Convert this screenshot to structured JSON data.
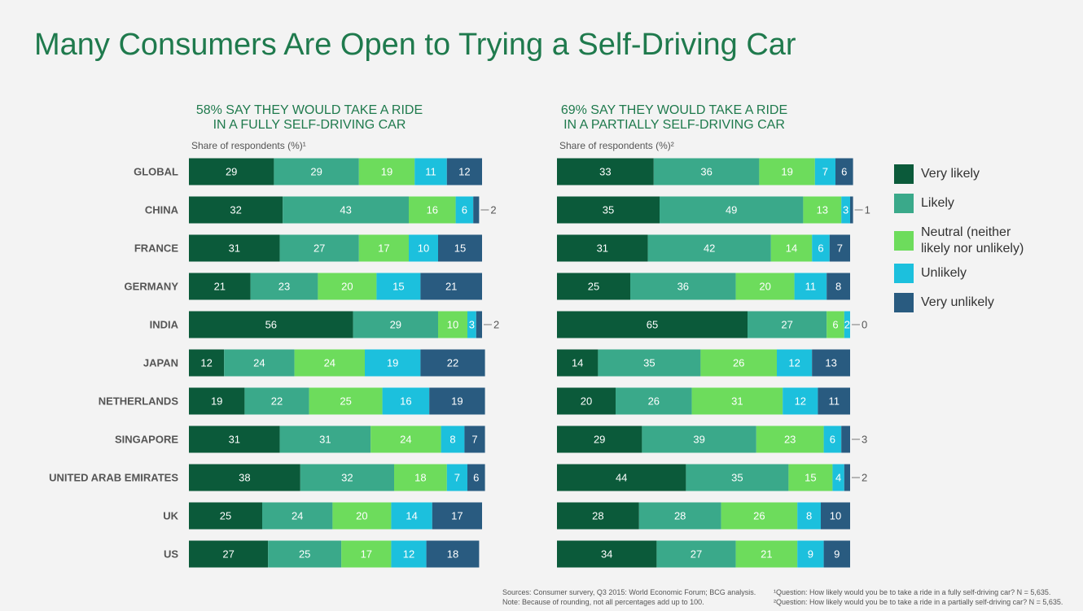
{
  "title": "Many Consumers Are Open to Trying a Self-Driving Car",
  "sources": "Sources: Consumer survery, Q3 2015: World Economic Forum; BCG analysis.",
  "note": "Note: Because of rounding, not all percentages add up to 100.",
  "footnotes": [
    "¹Question: How likely would you be to take a ride in a fully self-driving car? N = 5,635.",
    "²Question: How likely would you be to take a ride in a partially self-driving car? N = 5,635."
  ],
  "chart_data": [
    {
      "type": "bar",
      "orientation": "horizontal",
      "stacked": true,
      "title": [
        "58% SAY THEY WOULD TAKE A RIDE",
        "IN A FULLY SELF-DRIVING CAR"
      ],
      "subtitle": "Share of respondents (%)¹",
      "categories": [
        "GLOBAL",
        "CHINA",
        "FRANCE",
        "GERMANY",
        "INDIA",
        "JAPAN",
        "NETHERLANDS",
        "SINGAPORE",
        "UNITED ARAB EMIRATES",
        "UK",
        "US"
      ],
      "series": [
        {
          "name": "Very likely",
          "color": "#0b5a3a",
          "values": [
            29,
            32,
            31,
            21,
            56,
            12,
            19,
            31,
            38,
            25,
            27
          ]
        },
        {
          "name": "Likely",
          "color": "#3aa98a",
          "values": [
            29,
            43,
            27,
            23,
            29,
            24,
            22,
            31,
            32,
            24,
            25
          ]
        },
        {
          "name": "Neutral (neither likely nor unlikely)",
          "color": "#6ddc5c",
          "values": [
            19,
            16,
            17,
            20,
            10,
            24,
            25,
            24,
            18,
            20,
            17
          ]
        },
        {
          "name": "Unlikely",
          "color": "#1cc0dd",
          "values": [
            11,
            6,
            10,
            15,
            3,
            19,
            16,
            8,
            7,
            14,
            12
          ]
        },
        {
          "name": "Very unlikely",
          "color": "#295b80",
          "values": [
            12,
            2,
            15,
            21,
            2,
            22,
            19,
            7,
            6,
            17,
            18
          ]
        }
      ]
    },
    {
      "type": "bar",
      "orientation": "horizontal",
      "stacked": true,
      "title": [
        "69% SAY THEY WOULD TAKE A RIDE",
        "IN A PARTIALLY SELF-DRIVING CAR"
      ],
      "subtitle": "Share of respondents (%)²",
      "series": [
        {
          "color": "#0b5a3a",
          "values": [
            33,
            35,
            31,
            25,
            65,
            14,
            20,
            29,
            44,
            28,
            34
          ]
        },
        {
          "color": "#3aa98a",
          "values": [
            36,
            49,
            42,
            36,
            27,
            35,
            26,
            39,
            35,
            28,
            27
          ]
        },
        {
          "color": "#6ddc5c",
          "values": [
            19,
            13,
            14,
            20,
            6,
            26,
            31,
            23,
            15,
            26,
            21
          ]
        },
        {
          "color": "#1cc0dd",
          "values": [
            7,
            3,
            6,
            11,
            2,
            12,
            12,
            6,
            4,
            8,
            9
          ]
        },
        {
          "color": "#295b80",
          "values": [
            6,
            1,
            7,
            8,
            0,
            13,
            11,
            3,
            2,
            10,
            9
          ]
        }
      ]
    }
  ]
}
